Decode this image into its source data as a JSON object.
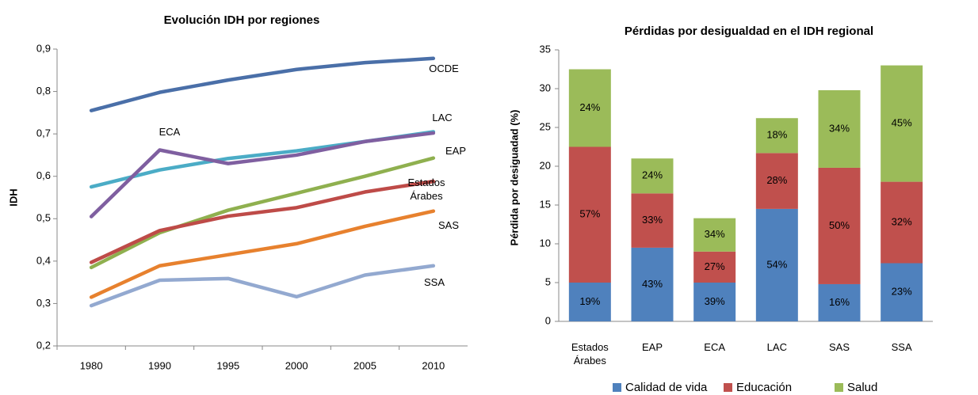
{
  "chart_data": [
    {
      "type": "line",
      "title": "Evolución IDH por regiones",
      "y_label": "IDH",
      "categories": [
        "1980",
        "1990",
        "1995",
        "2000",
        "2005",
        "2010"
      ],
      "ylim": [
        0.2,
        0.9
      ],
      "yticks": [
        {
          "value": 0.2,
          "label": "0,2"
        },
        {
          "value": 0.3,
          "label": "0,3"
        },
        {
          "value": 0.4,
          "label": "0,4"
        },
        {
          "value": 0.5,
          "label": "0,5"
        },
        {
          "value": 0.6,
          "label": "0,6"
        },
        {
          "value": 0.7,
          "label": "0,7"
        },
        {
          "value": 0.8,
          "label": "0,8"
        },
        {
          "value": 0.9,
          "label": "0,9"
        }
      ],
      "series": [
        {
          "name": "OCDE",
          "color": "#4a6fa8",
          "values": [
            0.755,
            0.798,
            0.827,
            0.852,
            0.868,
            0.878
          ]
        },
        {
          "name": "LAC",
          "color": "#4bacc6",
          "values": [
            0.575,
            0.615,
            0.642,
            0.66,
            0.682,
            0.705
          ]
        },
        {
          "name": "ECA",
          "color": "#7f5fa0",
          "values": [
            0.505,
            0.662,
            0.63,
            0.65,
            0.682,
            0.702
          ]
        },
        {
          "name": "EAP",
          "color": "#8fb04f",
          "values": [
            0.385,
            0.467,
            0.52,
            0.56,
            0.6,
            0.643
          ]
        },
        {
          "name": "Estados Árabes",
          "color": "#be4b48",
          "values": [
            0.397,
            0.472,
            0.506,
            0.526,
            0.563,
            0.588
          ]
        },
        {
          "name": "SAS",
          "color": "#e7812e",
          "values": [
            0.315,
            0.389,
            0.415,
            0.441,
            0.482,
            0.518
          ]
        },
        {
          "name": "SSA",
          "color": "#93a9d0",
          "values": [
            0.295,
            0.355,
            0.359,
            0.316,
            0.367,
            0.389
          ]
        }
      ]
    },
    {
      "type": "stacked_bar",
      "title": "Pérdidas por desigualdad en el IDH regional",
      "y_label": "Pérdida por desiguadad (%)",
      "categories": [
        "Estados Árabes",
        "EAP",
        "ECA",
        "LAC",
        "SAS",
        "SSA"
      ],
      "ylim": [
        0,
        35
      ],
      "yticks": [
        0,
        5,
        10,
        15,
        20,
        25,
        30,
        35
      ],
      "legend": "bottom",
      "series": [
        {
          "name": "Calidad de vida",
          "color": "#4f81bd",
          "values": [
            5,
            9.5,
            5,
            14.5,
            4.8,
            7.5
          ],
          "labels": [
            "19%",
            "43%",
            "39%",
            "54%",
            "16%",
            "23%"
          ]
        },
        {
          "name": "Educación",
          "color": "#c0504d",
          "values": [
            17.5,
            7,
            4,
            7.2,
            15,
            10.5
          ],
          "labels": [
            "57%",
            "33%",
            "27%",
            "28%",
            "50%",
            "32%"
          ]
        },
        {
          "name": "Salud",
          "color": "#9bbb59",
          "values": [
            10,
            4.5,
            4.3,
            4.5,
            10,
            15
          ],
          "labels": [
            "24%",
            "24%",
            "34%",
            "18%",
            "34%",
            "45%"
          ]
        }
      ]
    }
  ]
}
